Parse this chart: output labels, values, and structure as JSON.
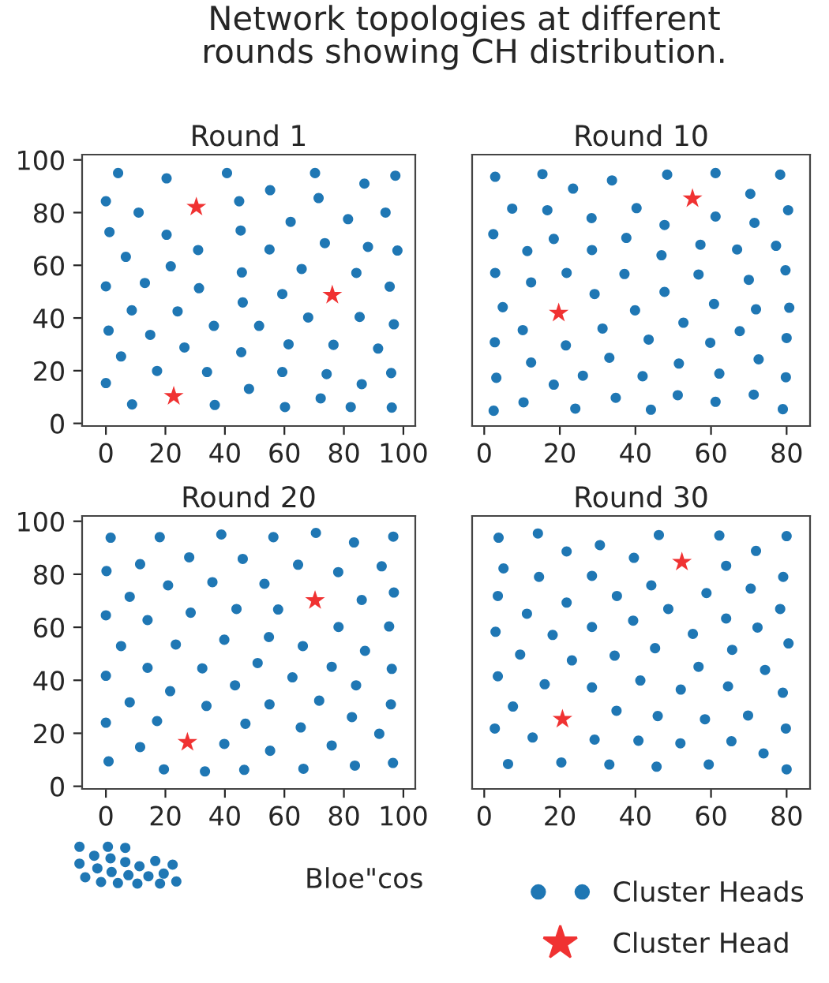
{
  "chart_data": [
    {
      "type": "scatter",
      "title": "Round 1",
      "annotations": [
        "Network topologies at different\nrounds showing CH distribution.",
        "Bloe\"cos"
      ],
      "legend": "bottom right",
      "xlim": [
        -8,
        104
      ],
      "ylim": [
        -1,
        102
      ],
      "xticks": [
        0,
        20,
        40,
        60,
        80,
        100
      ],
      "yticks": [
        0,
        20,
        40,
        60,
        80,
        100
      ],
      "series": [
        {
          "name": "Cluster Heads",
          "color": "#1f77b4",
          "marker": "circle",
          "x": [
            4.1,
            20.4,
            40.7,
            70.3,
            86.9,
            97.3,
            55.2,
            0,
            11,
            44.8,
            71.5,
            62.1,
            81.4,
            94,
            1.2,
            20.4,
            45.3,
            31,
            55,
            73.6,
            88.1,
            98,
            6.7,
            21.8,
            45.7,
            65.8,
            84.2,
            0,
            13.1,
            31.3,
            59.3,
            95.4,
            8.7,
            24.1,
            46,
            68,
            85.3,
            96.8,
            0.9,
            14.9,
            36.3,
            51.5,
            5.1,
            26.4,
            45.5,
            61.4,
            76.5,
            91.5,
            0,
            17.2,
            34,
            59.3,
            74.2,
            95.9,
            48.1,
            86,
            8.8,
            36.6,
            60.2,
            72.2,
            82.3,
            96.1
          ],
          "values": [
            95,
            93,
            95,
            95,
            91,
            94,
            88.5,
            84.3,
            80,
            84.3,
            85.5,
            76.5,
            77.5,
            80,
            72.6,
            71.6,
            73.2,
            65.8,
            66,
            68.4,
            67,
            65.6,
            63.2,
            59.6,
            57.3,
            58.6,
            57.1,
            52,
            53.3,
            51.3,
            49.1,
            51.9,
            42.9,
            42.5,
            45.9,
            40.2,
            40.4,
            37.6,
            35.2,
            33.6,
            37,
            37,
            25.4,
            28.8,
            27,
            30,
            29.8,
            28.4,
            15.3,
            19.9,
            19.5,
            19.5,
            18.7,
            19.1,
            13.1,
            14.9,
            7.2,
            7,
            6.2,
            9.5,
            6.2,
            6
          ]
        },
        {
          "name": "Cluster Head",
          "color": "#f03232",
          "marker": "star",
          "x": [
            30.4,
            76.1,
            22.8
          ],
          "values": [
            82.1,
            48.7,
            10.3
          ]
        }
      ]
    },
    {
      "type": "scatter",
      "title": "Round 10",
      "tick_labels": "x",
      "xlim": [
        -3.2,
        86.2
      ],
      "ylim": [
        -1,
        102
      ],
      "xticks": [
        0,
        20,
        40,
        60,
        80
      ],
      "series": [
        {
          "color": "#1f77b4",
          "marker": "circle",
          "x": [
            2.9,
            15.4,
            23.5,
            33.8,
            48.4,
            61.2,
            78.3,
            7.4,
            16.7,
            28.4,
            40.3,
            47.7,
            61.2,
            70.4,
            71.5,
            80.4,
            2.4,
            18.4,
            28.5,
            37.6,
            11.4,
            46.9,
            57.2,
            66.9,
            77.2,
            2.9,
            12.4,
            21.8,
            37.1,
            56.7,
            70,
            79.7,
            29.2,
            47.7,
            4.9,
            39.9,
            60.8,
            71.9,
            80.7,
            52.7,
            10.2,
            31.3,
            2.8,
            21.6,
            43.5,
            59.8,
            67.6,
            80,
            12.4,
            33.1,
            51.5,
            72.6,
            3.2,
            18.4,
            26.1,
            41.9,
            62.2,
            79.8,
            2.5,
            10.4,
            24.1,
            34.8,
            44.1,
            51.2,
            61.2,
            71.3,
            79
          ],
          "values": [
            93.6,
            94.6,
            89.1,
            92.2,
            94.4,
            95,
            94.4,
            81.5,
            80.9,
            77.9,
            81.7,
            75.3,
            78.5,
            87.1,
            76.1,
            80.9,
            71.8,
            70,
            65.8,
            70.4,
            65.4,
            63.8,
            67.8,
            66,
            67.4,
            57.1,
            53.5,
            57.1,
            56.7,
            56.5,
            54.5,
            58.1,
            49.1,
            49.9,
            44.1,
            42.9,
            45.3,
            43.3,
            43.9,
            38.2,
            35.4,
            36,
            30.8,
            29.6,
            31.8,
            30.6,
            35,
            32.4,
            23.1,
            24.9,
            22.7,
            24.3,
            17.3,
            14.7,
            18.1,
            17.9,
            18.9,
            17.5,
            4.8,
            8,
            5.6,
            9.7,
            5.2,
            10.7,
            8.2,
            10.9,
            5.4
          ]
        },
        {
          "color": "#f03232",
          "marker": "star",
          "x": [
            19.7,
            55.1
          ],
          "values": [
            41.9,
            85.3
          ]
        }
      ]
    },
    {
      "type": "scatter",
      "title": "Round 20",
      "xlim": [
        -8,
        104
      ],
      "ylim": [
        -1,
        102
      ],
      "xticks": [
        0,
        20,
        40,
        60,
        80,
        100
      ],
      "yticks": [
        0,
        20,
        40,
        60,
        80,
        100
      ],
      "series": [
        {
          "color": "#1f77b4",
          "marker": "circle",
          "x": [
            1.6,
            18.1,
            38.8,
            56.3,
            70.6,
            83.4,
            96.6,
            28,
            46,
            0.2,
            11.5,
            64.6,
            78.1,
            92.7,
            20.9,
            35.8,
            53.3,
            8,
            96.8,
            86,
            0,
            14,
            28.5,
            43.9,
            57.9,
            78.2,
            95.2,
            5.1,
            23.5,
            39.8,
            54.8,
            66.2,
            87.1,
            0,
            14,
            32.4,
            51,
            62.7,
            75.9,
            84.1,
            96.1,
            21.6,
            43.4,
            8,
            33.8,
            55,
            71.7,
            82.7,
            95.8,
            0,
            17.2,
            46.9,
            65.5,
            91.9,
            11.5,
            39.8,
            55.2,
            75.9,
            0.9,
            19.5,
            33.3,
            46.5,
            66.4,
            83.7,
            96.5
          ],
          "values": [
            93.8,
            94,
            95,
            94,
            95.6,
            92,
            94.2,
            86.4,
            85.8,
            81.2,
            83.8,
            83.6,
            80.8,
            83,
            75.8,
            77,
            76.4,
            71.5,
            73.1,
            70.3,
            64.5,
            62.7,
            65.5,
            66.9,
            66.7,
            60.1,
            60.3,
            52.9,
            53.5,
            55.3,
            56.3,
            52.9,
            51.1,
            41.7,
            44.7,
            44.5,
            46.5,
            41.1,
            45.1,
            38.1,
            44.3,
            35.9,
            38.1,
            31.7,
            30.3,
            30.9,
            32.3,
            26.1,
            30.9,
            24,
            24.6,
            23.6,
            22.2,
            19.8,
            14.8,
            16,
            13.4,
            15.4,
            9.4,
            6.4,
            5.6,
            6.2,
            6.6,
            7.8,
            8.8
          ]
        },
        {
          "color": "#f03232",
          "marker": "star",
          "x": [
            27.4,
            70.3
          ],
          "values": [
            16.6,
            70.1
          ]
        }
      ]
    },
    {
      "type": "scatter",
      "title": "Round 30",
      "tick_labels": "x",
      "xlim": [
        -3.2,
        86.2
      ],
      "ylim": [
        -1,
        102
      ],
      "xticks": [
        0,
        20,
        40,
        60,
        80
      ],
      "series": [
        {
          "color": "#1f77b4",
          "marker": "circle",
          "x": [
            3.8,
            14.2,
            21.8,
            30.6,
            46.2,
            62.2,
            80,
            5.1,
            14.5,
            28.5,
            39.6,
            44.2,
            64,
            71.9,
            79.1,
            70.5,
            3.6,
            21.8,
            35.1,
            58.8,
            48.7,
            11.3,
            78.3,
            3,
            18.1,
            28.5,
            39.4,
            55.2,
            64,
            72.3,
            80.5,
            9.5,
            23.2,
            34.5,
            45.2,
            65.6,
            56.7,
            74.3,
            3.6,
            16,
            28.5,
            41.3,
            52,
            64.5,
            79,
            7.6,
            35,
            45.9,
            58.4,
            69.8,
            2.8,
            12.8,
            29.2,
            40.8,
            51.9,
            65.4,
            79.8,
            73.9,
            6.3,
            20.4,
            33.1,
            45.6,
            59.4,
            80
          ],
          "values": [
            93.8,
            95.4,
            88.6,
            91,
            94.8,
            94.6,
            94.4,
            82.2,
            79,
            79.4,
            86.2,
            75.8,
            83.2,
            88.8,
            79,
            74.6,
            71.8,
            69.3,
            71.8,
            72.9,
            66.9,
            65.1,
            66.9,
            58.3,
            57.1,
            60.1,
            62.5,
            57.5,
            63.3,
            59.9,
            53.9,
            49.7,
            47.5,
            49.3,
            52.1,
            51.5,
            45.1,
            43.9,
            41.5,
            38.5,
            37.3,
            39.9,
            36.5,
            37.7,
            35.3,
            30.1,
            28.5,
            26.5,
            25.3,
            26.7,
            21.8,
            18.4,
            17.6,
            17.2,
            16.2,
            17,
            21.8,
            12.4,
            8.4,
            9,
            8.2,
            7.4,
            8.2,
            6.4
          ]
        },
        {
          "color": "#f03232",
          "marker": "star",
          "x": [
            20.7,
            52.3
          ],
          "values": [
            25.3,
            84.6
          ]
        }
      ]
    }
  ]
}
